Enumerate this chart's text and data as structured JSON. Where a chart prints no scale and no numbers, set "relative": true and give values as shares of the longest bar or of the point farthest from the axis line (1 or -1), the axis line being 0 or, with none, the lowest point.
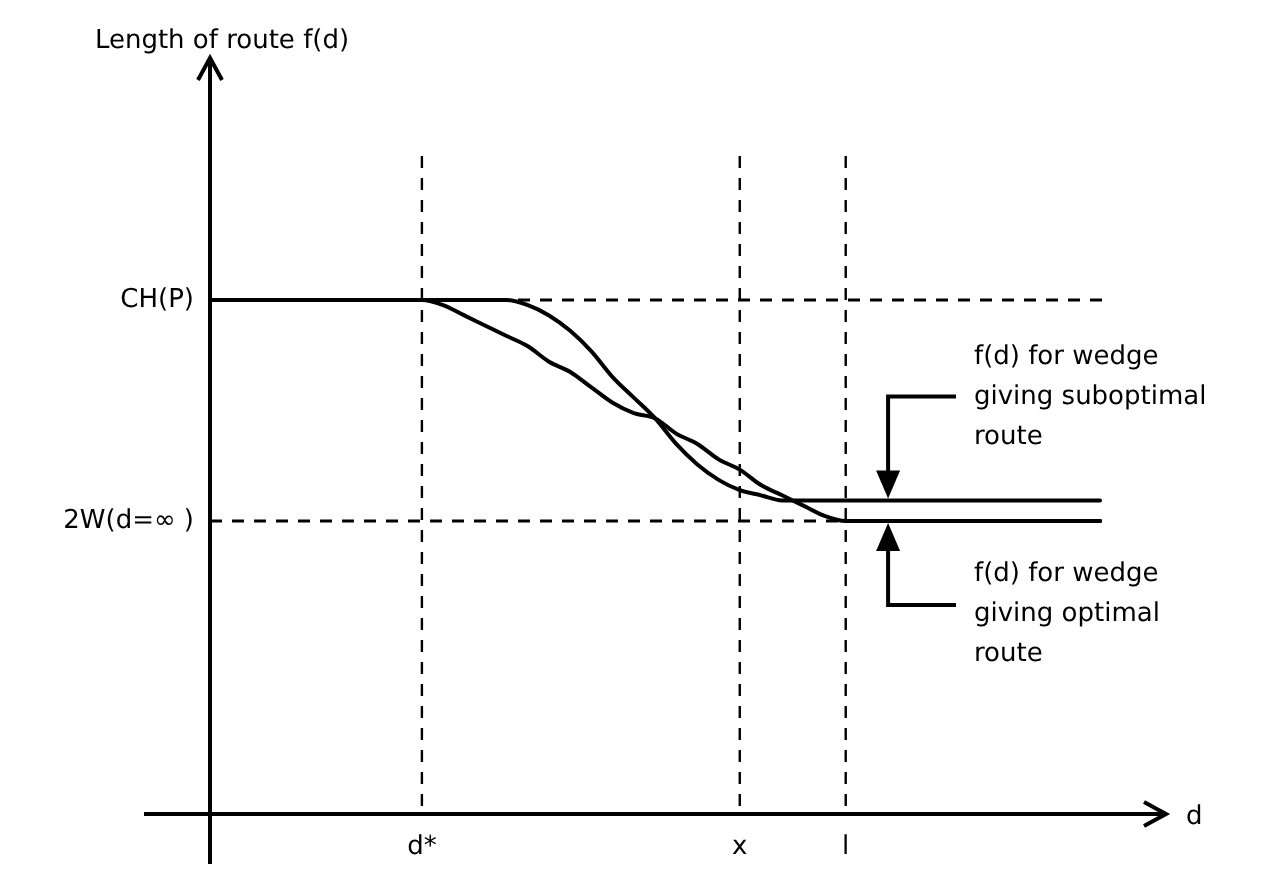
{
  "chart_data": {
    "type": "line",
    "relative": true,
    "xlabel": "d",
    "line_style": "solid",
    "categories": [
      null,
      null,
      null,
      null,
      null,
      null,
      null,
      null,
      null,
      null,
      "d*",
      null,
      null,
      null,
      null,
      null,
      null,
      null,
      null,
      null,
      null,
      null,
      null,
      null,
      null,
      "x",
      null,
      null,
      null,
      null,
      "l",
      null,
      null,
      null,
      null,
      null,
      null,
      null,
      null,
      null,
      null,
      null,
      null
    ],
    "series": [
      {
        "color": "#000000",
        "values": [
          1,
          1,
          1,
          1,
          1,
          1,
          1,
          1,
          1,
          1,
          1,
          1,
          1,
          1,
          1,
          0.99,
          0.97,
          0.94,
          0.9,
          0.85,
          0.81,
          0.77,
          0.72,
          0.68,
          0.65,
          0.63,
          0.62,
          0.61,
          0.61,
          0.61,
          0.61,
          0.61,
          0.61,
          0.61,
          0.61,
          0.61,
          0.61,
          0.61,
          0.61,
          0.61,
          0.61,
          0.61,
          0.61
        ]
      },
      {
        "color": "#000000",
        "values": [
          1,
          1,
          1,
          1,
          1,
          1,
          1,
          1,
          1,
          1,
          1,
          0.99,
          0.97,
          0.95,
          0.93,
          0.91,
          0.88,
          0.86,
          0.83,
          0.8,
          0.78,
          0.77,
          0.74,
          0.72,
          0.69,
          0.67,
          0.64,
          0.62,
          0.6,
          0.58,
          0.57,
          0.57,
          0.57,
          0.57,
          0.57,
          0.57,
          0.57,
          0.57,
          0.57,
          0.57,
          0.57,
          0.57,
          0.57
        ]
      }
    ],
    "ref_lines": [
      {
        "axis": "y",
        "value": 1,
        "label": "CH(P)",
        "line_style": "dashed"
      },
      {
        "axis": "y",
        "value": 0.57,
        "label": "2W(d=∞ )",
        "line_style": "dashed"
      },
      {
        "axis": "x",
        "value": "d*",
        "line_style": "dashed"
      },
      {
        "axis": "x",
        "value": "x",
        "line_style": "dashed"
      },
      {
        "axis": "x",
        "value": "l",
        "line_style": "dashed"
      }
    ],
    "annotations": [
      "Length of route f(d)",
      "f(d) for wedge giving suboptimal route",
      "f(d) for wedge giving optimal route"
    ]
  }
}
